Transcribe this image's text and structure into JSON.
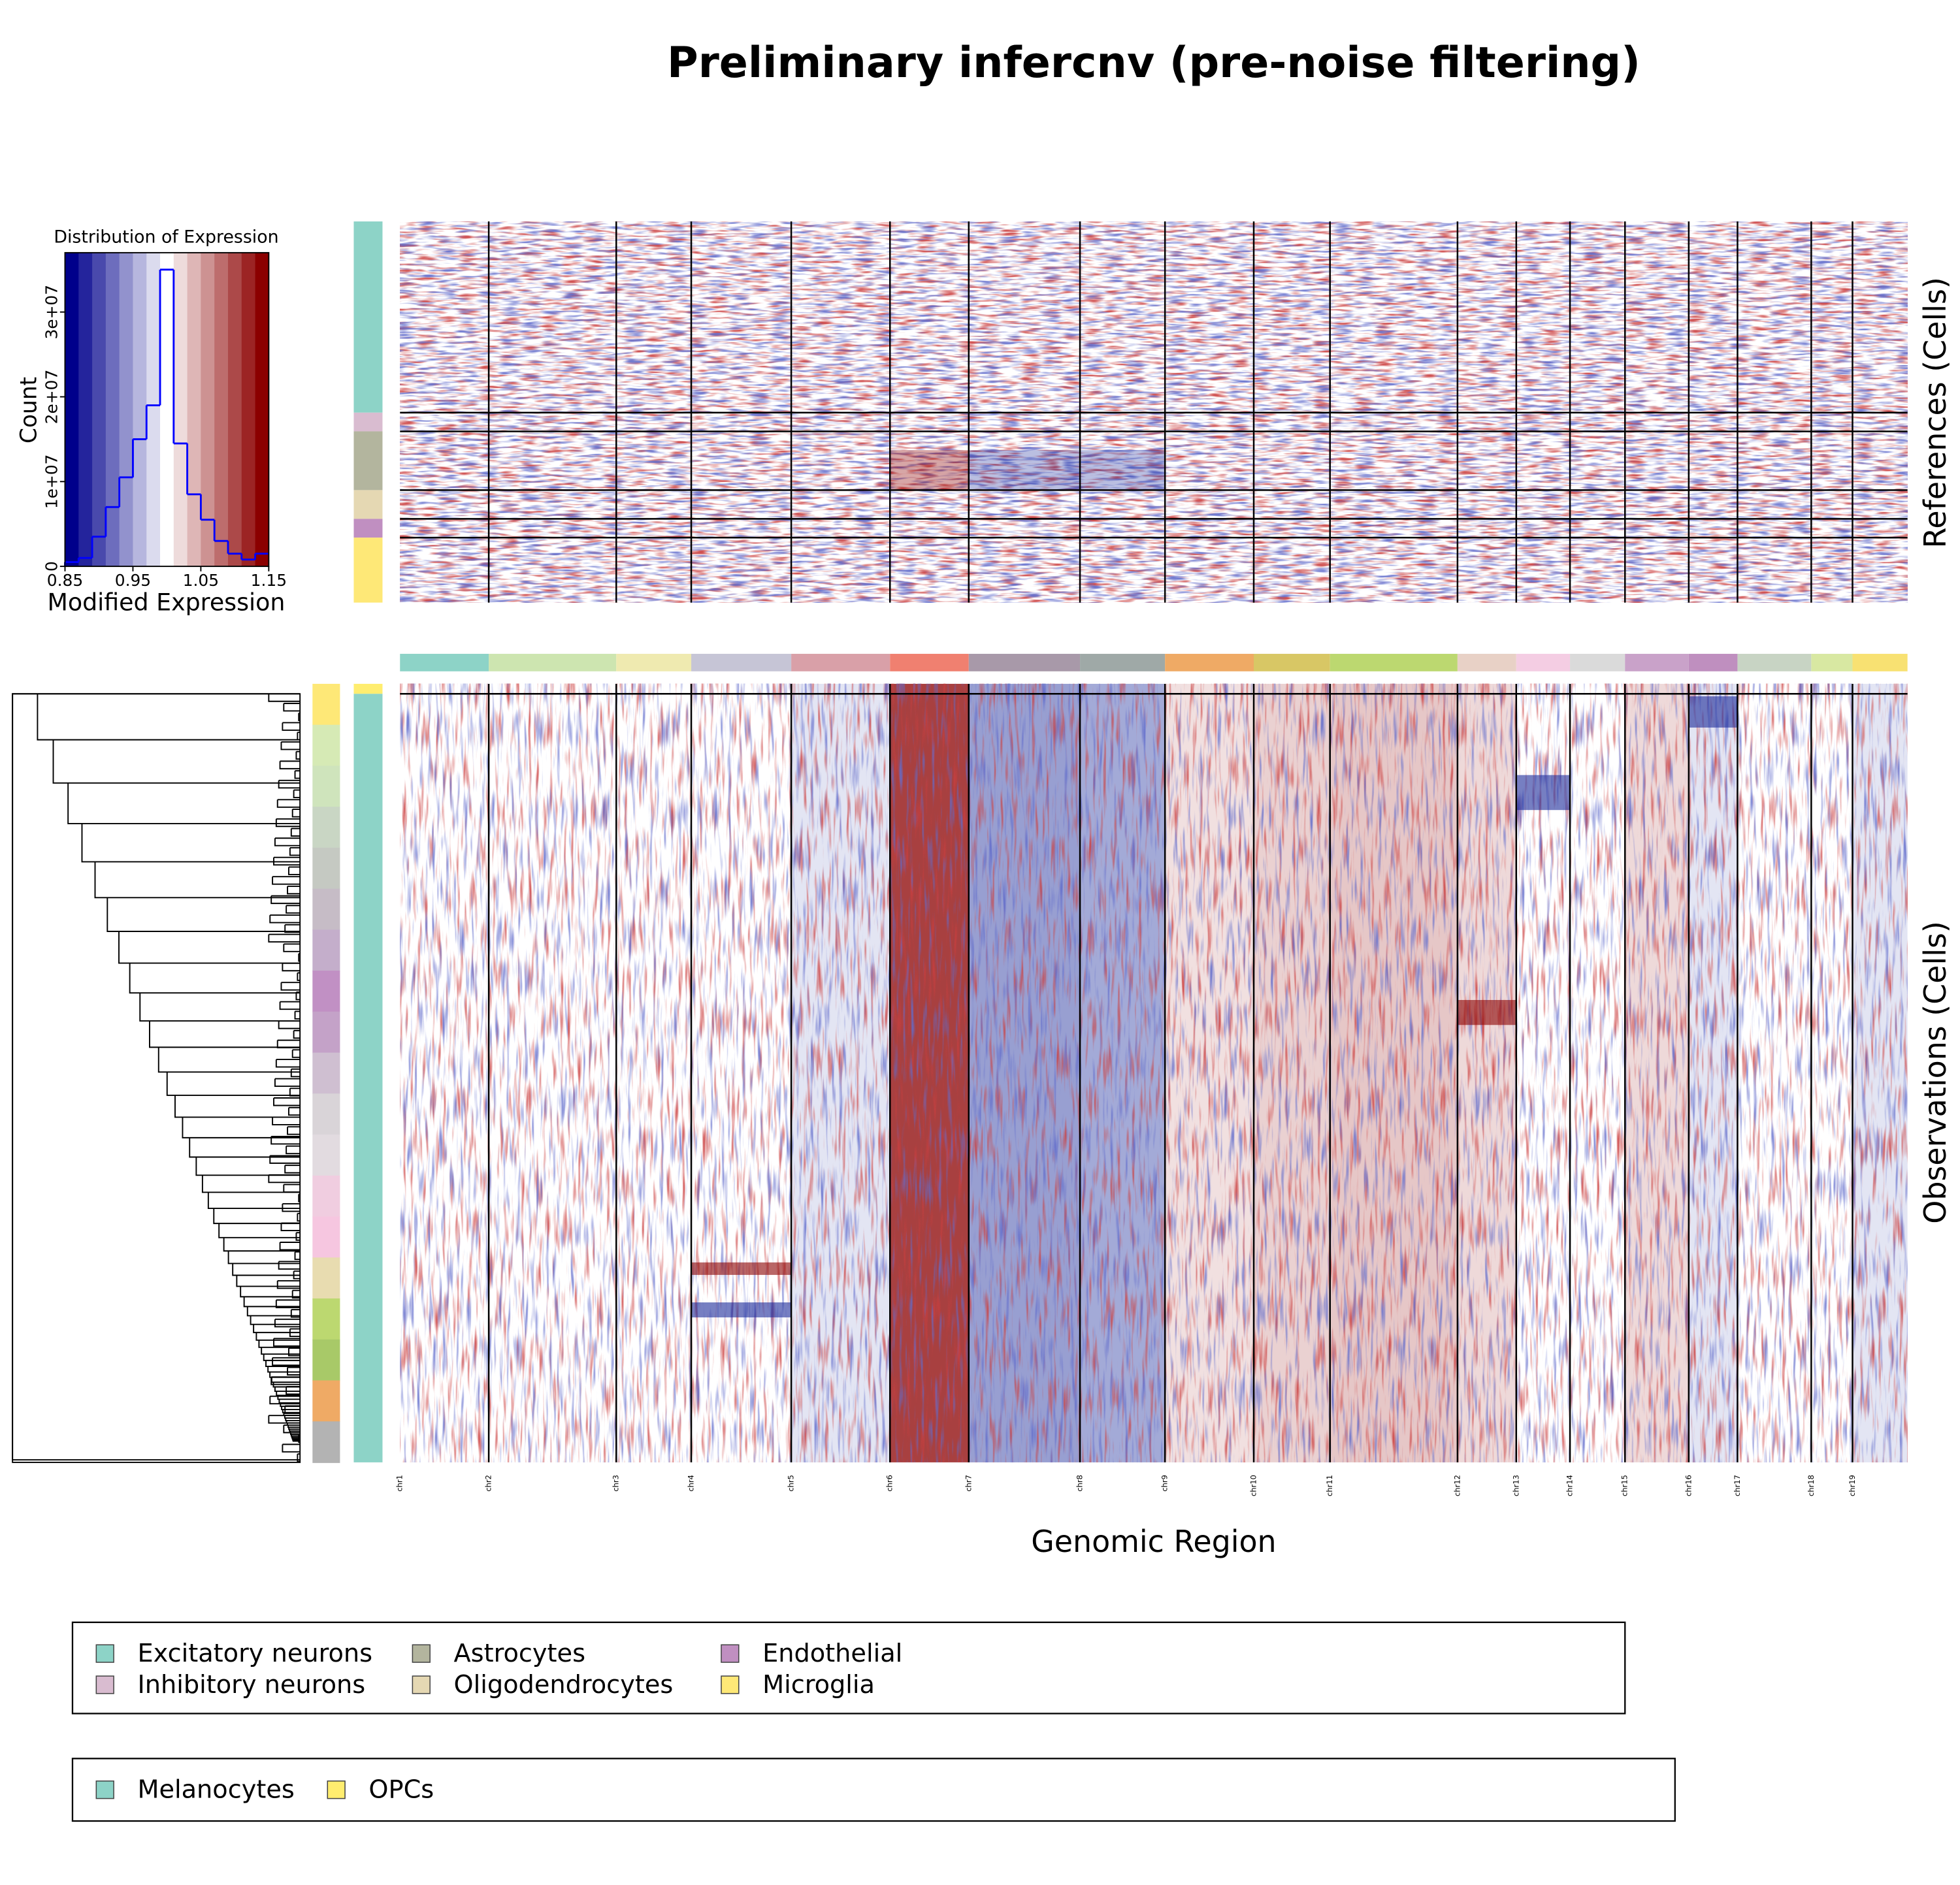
{
  "chart_data": {
    "type": "heatmap",
    "title": "Preliminary infercnv (pre-noise filtering)",
    "xlabel": "Genomic Region",
    "references_label": "References (Cells)",
    "observations_label": "Observations (Cells)",
    "chromosomes": [
      {
        "label": "chr1",
        "color": "#8dd3c7"
      },
      {
        "label": "chr2",
        "color": "#cde5b0"
      },
      {
        "label": "chr3",
        "color": "#efeab0"
      },
      {
        "label": "chr4",
        "color": "#c6c5d6"
      },
      {
        "label": "chr5",
        "color": "#d9a0a8"
      },
      {
        "label": "chr6",
        "color": "#f08070"
      },
      {
        "label": "chr7",
        "color": "#a899a9"
      },
      {
        "label": "chr8",
        "color": "#9fa9a7"
      },
      {
        "label": "chr9",
        "color": "#efaa65"
      },
      {
        "label": "chr10",
        "color": "#d8c765"
      },
      {
        "label": "chr11",
        "color": "#bcd870"
      },
      {
        "label": "chr12",
        "color": "#e8d1c6"
      },
      {
        "label": "chr13",
        "color": "#f4cde3"
      },
      {
        "label": "chr14",
        "color": "#dadada"
      },
      {
        "label": "chr15",
        "color": "#c9a2c9"
      },
      {
        "label": "chr16",
        "color": "#bf8fbf"
      },
      {
        "label": "chr17",
        "color": "#c8d4c4"
      },
      {
        "label": "chr18",
        "color": "#d8e8a2"
      },
      {
        "label": "chr19",
        "color": "#f8e172"
      }
    ],
    "reference_legend": [
      {
        "name": "Excitatory neurons",
        "color": "#8dd3c7"
      },
      {
        "name": "Inhibitory neurons",
        "color": "#d9bcd0"
      },
      {
        "name": "Astrocytes",
        "color": "#b3b59e"
      },
      {
        "name": "Oligodendrocytes",
        "color": "#e5d8b3"
      },
      {
        "name": "Endothelial",
        "color": "#c08fc1"
      },
      {
        "name": "Microglia",
        "color": "#fee877"
      }
    ],
    "observation_legend": [
      {
        "name": "Melanocytes",
        "color": "#8dd3c7"
      },
      {
        "name": "OPCs",
        "color": "#ffed6f"
      }
    ],
    "histogram": {
      "type": "histogram",
      "title": "Distribution of Expression",
      "xlabel": "Modified Expression",
      "ylabel": "Count",
      "color": "#0000ff",
      "bins": [
        0.85,
        0.87,
        0.89,
        0.91,
        0.93,
        0.95,
        0.97,
        0.99,
        1.01,
        1.03,
        1.05,
        1.07,
        1.09,
        1.11,
        1.13,
        1.15
      ],
      "counts": [
        500000,
        1000000,
        3500000,
        7000000,
        10500000,
        15000000,
        19000000,
        35000000,
        14500000,
        8500000,
        5500000,
        3000000,
        1500000,
        800000,
        1500000
      ],
      "xlim": [
        0.85,
        1.15
      ],
      "xticks": [
        0.85,
        0.95,
        1.05,
        1.15
      ],
      "ylim": [
        0,
        37000000
      ],
      "yticks": [
        0,
        {
          "value": 10000000,
          "label": "1e+07"
        },
        {
          "value": 20000000,
          "label": "2e+07"
        },
        {
          "value": 30000000,
          "label": "3e+07"
        }
      ]
    }
  }
}
